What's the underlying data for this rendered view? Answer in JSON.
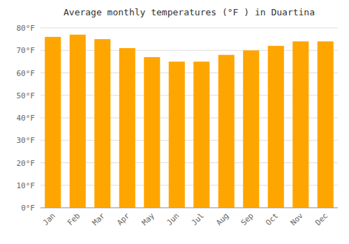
{
  "chart_data": {
    "type": "bar",
    "title": "Average monthly temperatures (°F ) in Duartina",
    "categories": [
      "Jan",
      "Feb",
      "Mar",
      "Apr",
      "May",
      "Jun",
      "Jul",
      "Aug",
      "Sep",
      "Oct",
      "Nov",
      "Dec"
    ],
    "values": [
      76,
      77,
      75,
      71,
      67,
      65,
      65,
      68,
      70,
      72,
      74,
      74
    ],
    "color": "#FFA500",
    "ylim": [
      0,
      80
    ],
    "yticks": [
      {
        "value": 0,
        "label": "0°F"
      },
      {
        "value": 10,
        "label": "10°F"
      },
      {
        "value": 20,
        "label": "20°F"
      },
      {
        "value": 30,
        "label": "30°F"
      },
      {
        "value": 40,
        "label": "40°F"
      },
      {
        "value": 50,
        "label": "50°F"
      },
      {
        "value": 60,
        "label": "60°F"
      },
      {
        "value": 70,
        "label": "70°F"
      },
      {
        "value": 80,
        "label": "80°F"
      }
    ],
    "grid": true
  }
}
